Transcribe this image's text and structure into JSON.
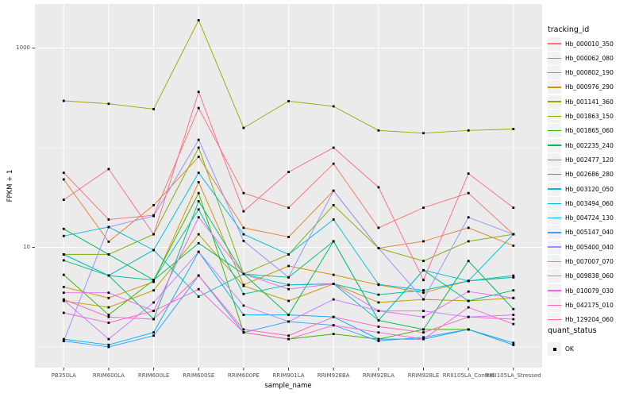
{
  "figure": {
    "background": "#FFFFFF",
    "panel_background": "#EBEBEB",
    "gridline_color": "#FFFFFF",
    "axis_text_color": "#4D4D4D",
    "tick_mark_color": "#333333",
    "point_color": "#000000"
  },
  "axes": {
    "x": {
      "title": "sample_name",
      "categories": [
        "PB350LA",
        "RRIM600LA",
        "RRIM600LE",
        "RRIM600SE",
        "RRIM600PE",
        "RRIM901LA",
        "RRIM928BA",
        "RRIM928LA",
        "RRIM928LE",
        "RRII105LA_Control",
        "RRII105LA_Stressed"
      ]
    },
    "y": {
      "title": "FPKM + 1",
      "scale": "log10",
      "ticks": [
        {
          "label": "1000",
          "value": 1000
        },
        {
          "label": "10",
          "value": 10
        }
      ]
    }
  },
  "legend": {
    "tracking_title": "tracking_id",
    "quant_title": "quant_status",
    "quant_value": "OK",
    "quant_marker": "black-square-point-icon",
    "key_background": "#F2F2F2"
  },
  "chart_data": {
    "type": "line",
    "title": "",
    "xlabel": "sample_name",
    "ylabel": "FPKM + 1",
    "y_scale": "log10",
    "ylim": [
      0.9,
      2400
    ],
    "major_grid_values": [
      10,
      1000
    ],
    "minor_grid_values": [
      1,
      100
    ],
    "grid": "on",
    "legend_position": "right",
    "point_marker": "small-black-square",
    "x_categories": [
      "PB350LA",
      "RRIM600LA",
      "RRIM600LE",
      "RRIM600SE",
      "RRIM600PE",
      "RRIM901LA",
      "RRIM928BA",
      "RRIM928LA",
      "RRIM928LE",
      "RRII105LA_Control",
      "RRII105LA_Stressed"
    ],
    "series": [
      {
        "name": "Hb_000010_350",
        "color": "#F8766D",
        "values": [
          56,
          19,
          21,
          250,
          35,
          25,
          69,
          15.7,
          25,
          35,
          13.5
        ]
      },
      {
        "name": "Hb_000062_080",
        "color": "#EA8331",
        "values": [
          48,
          11.4,
          26.5,
          81,
          15.7,
          12.7,
          37,
          9.8,
          11.5,
          15.7,
          10.4
        ]
      },
      {
        "name": "Hb_000802_190",
        "color": "#D89000",
        "values": [
          4.0,
          3.1,
          4.5,
          45,
          4.2,
          6.5,
          5.3,
          4.2,
          3.5,
          4.6,
          5.0
        ]
      },
      {
        "name": "Hb_000976_290",
        "color": "#C09B00",
        "values": [
          2.9,
          2.5,
          3.7,
          13.5,
          4.1,
          2.9,
          4.3,
          2.8,
          3.0,
          2.9,
          3.1
        ]
      },
      {
        "name": "Hb_001141_360",
        "color": "#A3A500",
        "values": [
          295,
          276,
          244,
          1900,
          158,
          293,
          260,
          149,
          140,
          149,
          154
        ]
      },
      {
        "name": "Hb_001863_150",
        "color": "#7CAE00",
        "values": [
          8.5,
          8.5,
          13.5,
          100,
          5.4,
          8.5,
          26.5,
          9.8,
          7.3,
          11.5,
          13.5
        ]
      },
      {
        "name": "Hb_001865_060",
        "color": "#39B600",
        "values": [
          5.3,
          2.1,
          4.7,
          35,
          1.4,
          1.2,
          1.35,
          1.2,
          1.5,
          1.5,
          1.05
        ]
      },
      {
        "name": "Hb_002235_240",
        "color": "#00BB4E",
        "values": [
          15.3,
          8.5,
          4.7,
          11,
          5.4,
          2.1,
          11.5,
          1.85,
          1.5,
          7.3,
          2.4
        ]
      },
      {
        "name": "Hb_002477_120",
        "color": "#00BF7D",
        "values": [
          7.4,
          5.2,
          1.9,
          29,
          5.4,
          5.0,
          11.5,
          1.85,
          5.9,
          2.9,
          3.7
        ]
      },
      {
        "name": "Hb_002686_280",
        "color": "#00C1A3",
        "values": [
          8.5,
          5.2,
          4.7,
          24,
          3.4,
          4.2,
          4.3,
          3.35,
          3.7,
          4.6,
          5.0
        ]
      },
      {
        "name": "Hb_003120_050",
        "color": "#00BFC4",
        "values": [
          8.5,
          5.2,
          9.4,
          3.2,
          5.4,
          4.2,
          4.3,
          1.85,
          5.9,
          4.6,
          5.2
        ]
      },
      {
        "name": "Hb_003494_060",
        "color": "#00BAE0",
        "values": [
          13,
          16,
          9.4,
          56,
          13.5,
          8.5,
          19,
          4.25,
          3.7,
          4.6,
          13.5
        ]
      },
      {
        "name": "Hb_004724_130",
        "color": "#00B0F6",
        "values": [
          1.2,
          1.05,
          1.4,
          9,
          2.1,
          2.1,
          2.0,
          1.2,
          1.2,
          1.5,
          1.1
        ]
      },
      {
        "name": "Hb_005147_040",
        "color": "#35A2FF",
        "values": [
          1.15,
          1.0,
          1.3,
          5.2,
          1.4,
          1.8,
          1.65,
          1.15,
          1.25,
          1.5,
          1.05
        ]
      },
      {
        "name": "Hb_005400_040",
        "color": "#9590FF",
        "values": [
          1.15,
          16,
          20.6,
          120,
          11.6,
          5.0,
          37,
          9.8,
          3.0,
          20,
          13.5
        ]
      },
      {
        "name": "Hb_007007_070",
        "color": "#C77CFF",
        "values": [
          2.95,
          1.2,
          2.8,
          9,
          2.6,
          1.8,
          3.0,
          2.3,
          2.3,
          2.0,
          2.1
        ]
      },
      {
        "name": "Hb_009838_060",
        "color": "#E76BF3",
        "values": [
          3.5,
          3.5,
          2.3,
          20,
          5.4,
          3.8,
          4.3,
          2.3,
          2.0,
          3.6,
          3.1
        ]
      },
      {
        "name": "Hb_010079_030",
        "color": "#FA62DB",
        "values": [
          2.2,
          1.75,
          2.3,
          3.8,
          1.4,
          1.2,
          1.65,
          1.4,
          1.2,
          2.5,
          1.7
        ]
      },
      {
        "name": "Hb_042175_010",
        "color": "#FF62BC",
        "values": [
          3.0,
          2.0,
          1.9,
          5.2,
          1.5,
          1.3,
          2.0,
          1.6,
          1.4,
          2.0,
          1.9
        ]
      },
      {
        "name": "Hb_129204_060",
        "color": "#FF6A98",
        "values": [
          30,
          61,
          13.5,
          363,
          23,
          57,
          100,
          40,
          4.7,
          55,
          25
        ]
      }
    ]
  }
}
